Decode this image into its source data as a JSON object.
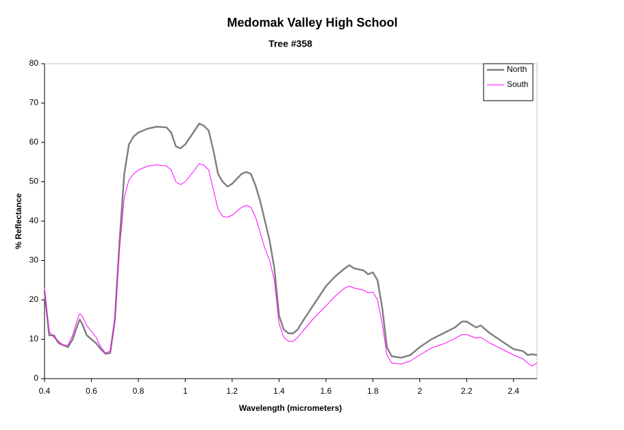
{
  "chart_data": {
    "type": "line",
    "title": "Medomak Valley High School",
    "subtitle": "Tree #358",
    "x_label": "Wavelength (micrometers)",
    "y_label": "% Reflectance",
    "x": [
      0.4,
      0.42,
      0.44,
      0.46,
      0.48,
      0.5,
      0.52,
      0.54,
      0.55,
      0.56,
      0.58,
      0.6,
      0.62,
      0.64,
      0.66,
      0.68,
      0.7,
      0.72,
      0.74,
      0.76,
      0.78,
      0.8,
      0.84,
      0.88,
      0.92,
      0.94,
      0.96,
      0.98,
      1.0,
      1.04,
      1.06,
      1.08,
      1.1,
      1.12,
      1.14,
      1.16,
      1.18,
      1.2,
      1.24,
      1.26,
      1.28,
      1.3,
      1.32,
      1.34,
      1.36,
      1.38,
      1.4,
      1.42,
      1.44,
      1.46,
      1.48,
      1.5,
      1.55,
      1.6,
      1.64,
      1.68,
      1.7,
      1.72,
      1.76,
      1.78,
      1.8,
      1.82,
      1.84,
      1.86,
      1.88,
      1.92,
      1.96,
      2.0,
      2.05,
      2.1,
      2.15,
      2.18,
      2.2,
      2.24,
      2.26,
      2.3,
      2.35,
      2.4,
      2.44,
      2.46,
      2.48,
      2.5
    ],
    "series": [
      {
        "name": "North",
        "color": "#808080",
        "width": 2.5,
        "values": [
          22,
          11,
          11,
          9,
          8.5,
          8,
          10,
          13.5,
          15,
          14,
          11,
          10,
          9,
          7.5,
          6.3,
          6.5,
          15,
          35,
          52,
          59.5,
          61.5,
          62.5,
          63.5,
          64,
          63.8,
          62.5,
          59,
          58.5,
          59.5,
          63,
          64.8,
          64.2,
          63,
          58,
          52,
          50,
          48.8,
          49.5,
          52,
          52.5,
          52,
          49,
          45,
          40,
          35,
          28,
          16,
          12.5,
          11.5,
          11.5,
          12.5,
          14.5,
          19,
          23.5,
          26,
          28,
          28.8,
          28,
          27.5,
          26.5,
          27,
          25,
          18,
          8,
          5.7,
          5.3,
          6,
          8,
          10,
          11.5,
          13,
          14.5,
          14.5,
          13,
          13.5,
          11.5,
          9.5,
          7.5,
          7,
          6,
          6.2,
          6
        ]
      },
      {
        "name": "South",
        "color": "#ff00ff",
        "width": 1,
        "values": [
          23,
          12,
          10.5,
          9.5,
          8.5,
          8.5,
          11,
          15,
          16.5,
          16,
          13.5,
          12,
          10.5,
          8,
          6.5,
          7,
          15,
          33,
          46,
          50.5,
          52,
          53,
          54,
          54.3,
          54,
          53,
          50,
          49.3,
          50,
          53,
          54.6,
          54.2,
          53,
          48,
          43,
          41.2,
          41,
          41.5,
          43.5,
          44,
          43.5,
          41,
          37,
          33,
          30,
          25,
          14,
          10.5,
          9.5,
          9.5,
          10.5,
          12,
          15.5,
          18.5,
          21,
          23,
          23.5,
          23,
          22.5,
          21.8,
          22,
          20,
          14,
          6,
          4,
          3.7,
          4.5,
          6,
          7.8,
          8.8,
          10.2,
          11.2,
          11.2,
          10.3,
          10.5,
          9,
          7.5,
          6,
          5,
          4,
          3.2,
          4
        ]
      }
    ],
    "xlim": [
      0.4,
      2.5
    ],
    "xticks": [
      0.4,
      0.6,
      0.8,
      1,
      1.2,
      1.4,
      1.6,
      1.8,
      2,
      2.2,
      2.4
    ],
    "ylim": [
      0,
      80
    ],
    "yticks": [
      0,
      10,
      20,
      30,
      40,
      50,
      60,
      70,
      80
    ],
    "grid": false,
    "legend": "upper right"
  }
}
